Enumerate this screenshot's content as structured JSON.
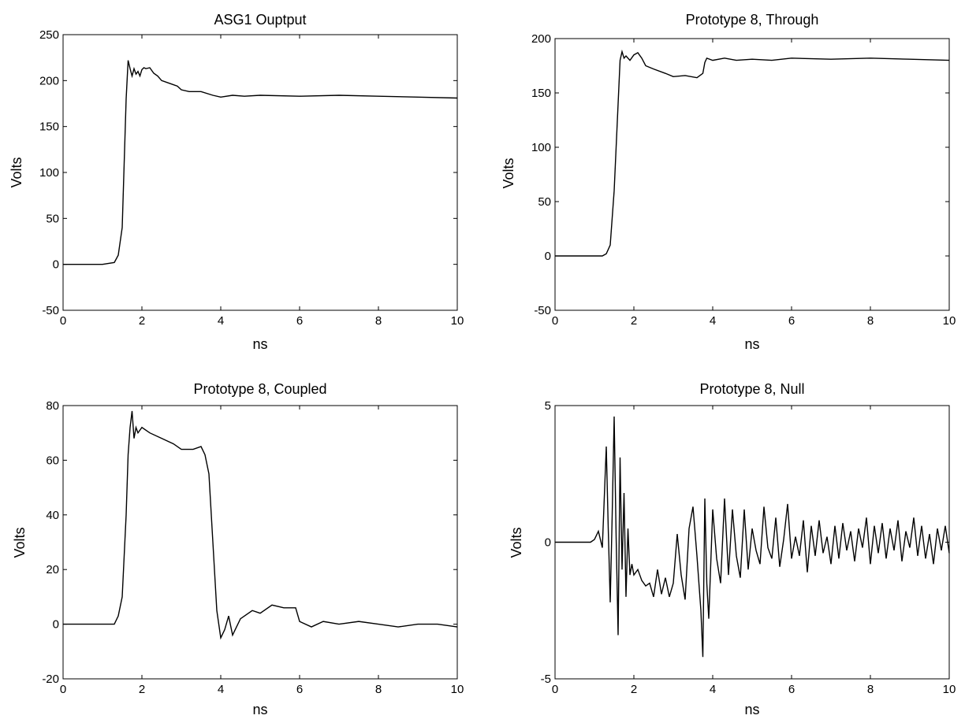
{
  "chart_data": [
    {
      "type": "line",
      "title": "ASG1 Ouptput",
      "xlabel": "ns",
      "ylabel": "Volts",
      "xlim": [
        0,
        10
      ],
      "ylim": [
        -50,
        250
      ],
      "xticks": [
        "0",
        "2",
        "4",
        "6",
        "8",
        "10"
      ],
      "yticks": [
        "-50",
        "0",
        "50",
        "100",
        "150",
        "200",
        "250"
      ],
      "grid": false,
      "series": [
        {
          "x": [
            0,
            0.5,
            1.0,
            1.3,
            1.4,
            1.5,
            1.55,
            1.6,
            1.65,
            1.7,
            1.75,
            1.8,
            1.85,
            1.9,
            1.95,
            2.0,
            2.05,
            2.1,
            2.2,
            2.3,
            2.4,
            2.5,
            2.7,
            2.9,
            3.0,
            3.2,
            3.5,
            3.8,
            4.0,
            4.3,
            4.6,
            5.0,
            6.0,
            7.0,
            8.0,
            9.0,
            10.0
          ],
          "y": [
            0,
            0,
            0,
            2,
            10,
            40,
            110,
            180,
            222,
            213,
            205,
            213,
            207,
            210,
            205,
            212,
            214,
            213,
            214,
            208,
            205,
            200,
            197,
            194,
            190,
            188,
            188,
            184,
            182,
            184,
            183,
            184,
            183,
            184,
            183,
            182,
            181
          ]
        }
      ]
    },
    {
      "type": "line",
      "title": "Prototype 8, Through",
      "xlabel": "ns",
      "ylabel": "Volts",
      "xlim": [
        0,
        10
      ],
      "ylim": [
        -50,
        200
      ],
      "xticks": [
        "0",
        "2",
        "4",
        "6",
        "8",
        "10"
      ],
      "yticks": [
        "-50",
        "0",
        "50",
        "100",
        "150",
        "200"
      ],
      "grid": false,
      "series": [
        {
          "x": [
            0,
            1.0,
            1.2,
            1.3,
            1.4,
            1.5,
            1.6,
            1.65,
            1.7,
            1.75,
            1.8,
            1.9,
            2.0,
            2.1,
            2.2,
            2.3,
            2.5,
            2.8,
            3.0,
            3.3,
            3.6,
            3.75,
            3.8,
            3.85,
            4.0,
            4.3,
            4.6,
            5.0,
            5.5,
            6.0,
            7.0,
            8.0,
            9.0,
            10.0
          ],
          "y": [
            0,
            0,
            0,
            2,
            10,
            60,
            140,
            180,
            188,
            182,
            184,
            180,
            185,
            187,
            182,
            175,
            172,
            168,
            165,
            166,
            164,
            168,
            178,
            182,
            180,
            182,
            180,
            181,
            180,
            182,
            181,
            182,
            181,
            180
          ]
        }
      ]
    },
    {
      "type": "line",
      "title": "Prototype 8, Coupled",
      "xlabel": "ns",
      "ylabel": "Volts",
      "xlim": [
        0,
        10
      ],
      "ylim": [
        -20,
        80
      ],
      "xticks": [
        "0",
        "2",
        "4",
        "6",
        "8",
        "10"
      ],
      "yticks": [
        "-20",
        "0",
        "20",
        "40",
        "60",
        "80"
      ],
      "grid": false,
      "series": [
        {
          "x": [
            0,
            1.0,
            1.3,
            1.4,
            1.5,
            1.6,
            1.65,
            1.7,
            1.75,
            1.8,
            1.85,
            1.9,
            2.0,
            2.2,
            2.5,
            2.8,
            3.0,
            3.3,
            3.5,
            3.6,
            3.7,
            3.8,
            3.9,
            4.0,
            4.1,
            4.2,
            4.3,
            4.5,
            4.8,
            5.0,
            5.3,
            5.6,
            5.9,
            6.0,
            6.3,
            6.6,
            7.0,
            7.5,
            8.0,
            8.5,
            9.0,
            9.5,
            10.0
          ],
          "y": [
            0,
            0,
            0,
            3,
            10,
            40,
            62,
            72,
            78,
            68,
            72,
            70,
            72,
            70,
            68,
            66,
            64,
            64,
            65,
            62,
            55,
            30,
            5,
            -5,
            -2,
            3,
            -4,
            2,
            5,
            4,
            7,
            6,
            6,
            1,
            -1,
            1,
            0,
            1,
            0,
            -1,
            0,
            0,
            -1
          ]
        }
      ]
    },
    {
      "type": "line",
      "title": "Prototype 8, Null",
      "xlabel": "ns",
      "ylabel": "Volts",
      "xlim": [
        0,
        10
      ],
      "ylim": [
        -5,
        5
      ],
      "xticks": [
        "0",
        "2",
        "4",
        "6",
        "8",
        "10"
      ],
      "yticks": [
        "-5",
        "0",
        "5"
      ],
      "grid": false,
      "series": [
        {
          "x": [
            0,
            0.9,
            1.0,
            1.1,
            1.2,
            1.3,
            1.35,
            1.4,
            1.45,
            1.5,
            1.55,
            1.6,
            1.65,
            1.7,
            1.75,
            1.8,
            1.85,
            1.9,
            1.95,
            2.0,
            2.1,
            2.2,
            2.3,
            2.4,
            2.5,
            2.6,
            2.7,
            2.8,
            2.9,
            3.0,
            3.1,
            3.2,
            3.3,
            3.4,
            3.5,
            3.6,
            3.7,
            3.75,
            3.8,
            3.85,
            3.9,
            4.0,
            4.1,
            4.2,
            4.3,
            4.4,
            4.5,
            4.6,
            4.7,
            4.8,
            4.9,
            5.0,
            5.1,
            5.2,
            5.3,
            5.4,
            5.5,
            5.6,
            5.7,
            5.8,
            5.9,
            6.0,
            6.1,
            6.2,
            6.3,
            6.4,
            6.5,
            6.6,
            6.7,
            6.8,
            6.9,
            7.0,
            7.1,
            7.2,
            7.3,
            7.4,
            7.5,
            7.6,
            7.7,
            7.8,
            7.9,
            8.0,
            8.1,
            8.2,
            8.3,
            8.4,
            8.5,
            8.6,
            8.7,
            8.8,
            8.9,
            9.0,
            9.1,
            9.2,
            9.3,
            9.4,
            9.5,
            9.6,
            9.7,
            9.8,
            9.9,
            10.0
          ],
          "y": [
            0,
            0,
            0.1,
            0.4,
            -0.2,
            3.5,
            0.5,
            -2.2,
            1.0,
            4.6,
            0.2,
            -3.4,
            3.1,
            -1.0,
            1.8,
            -2.0,
            0.5,
            -1.2,
            -0.8,
            -1.2,
            -1.0,
            -1.4,
            -1.6,
            -1.5,
            -2.0,
            -1.0,
            -1.9,
            -1.3,
            -2.0,
            -1.5,
            0.3,
            -1.2,
            -2.1,
            0.5,
            1.3,
            -0.5,
            -2.5,
            -4.2,
            1.6,
            -1.5,
            -2.8,
            1.2,
            -0.6,
            -1.5,
            1.6,
            -1.2,
            1.2,
            -0.5,
            -1.3,
            1.2,
            -1.0,
            0.5,
            -0.3,
            -0.8,
            1.3,
            -0.2,
            -0.6,
            0.9,
            -0.9,
            0.1,
            1.4,
            -0.6,
            0.2,
            -0.5,
            0.8,
            -1.1,
            0.6,
            -0.5,
            0.8,
            -0.4,
            0.2,
            -0.8,
            0.6,
            -0.6,
            0.7,
            -0.3,
            0.4,
            -0.7,
            0.5,
            -0.2,
            0.9,
            -0.8,
            0.6,
            -0.4,
            0.7,
            -0.6,
            0.5,
            -0.3,
            0.8,
            -0.7,
            0.4,
            -0.2,
            0.9,
            -0.5,
            0.6,
            -0.6,
            0.3,
            -0.8,
            0.5,
            -0.3,
            0.6,
            -0.4
          ]
        }
      ]
    }
  ]
}
